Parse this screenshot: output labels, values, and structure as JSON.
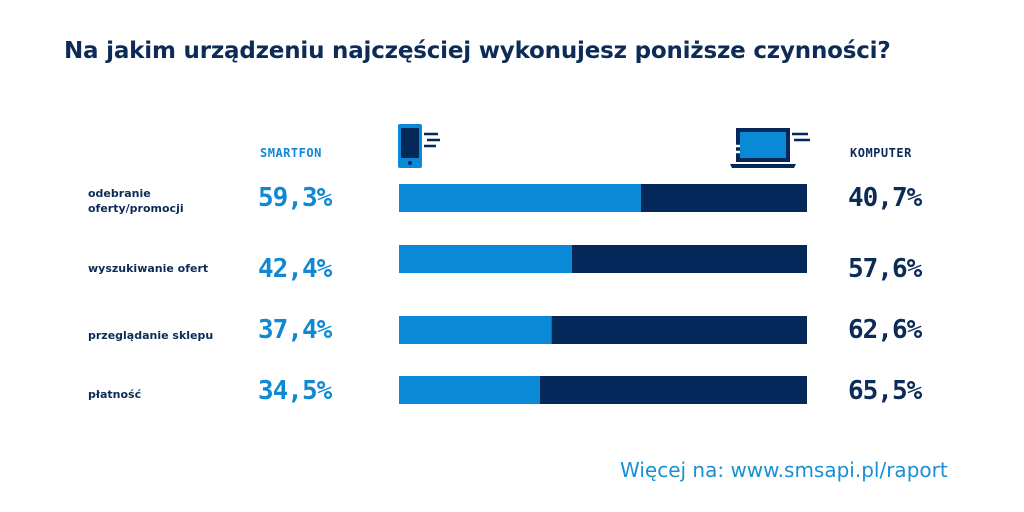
{
  "title": "Na jakim urządzeniu najczęściej wykonujesz poniższe czynności?",
  "legend": {
    "left": "SMARTFON",
    "right": "KOMPUTER",
    "left_icon": "smartphone-icon",
    "right_icon": "laptop-icon"
  },
  "colors": {
    "smartfon": "#0a8ad6",
    "komputer": "#04285a",
    "title": "#0d2b57"
  },
  "footer": "Więcej na: www.smsapi.pl/raport",
  "chart_data": {
    "type": "bar",
    "orientation": "horizontal",
    "stacked": true,
    "normalized_percent": true,
    "title": "Na jakim urządzeniu najczęściej wykonujesz poniższe czynności?",
    "categories": [
      "odebranie oferty/promocji",
      "wyszukiwanie ofert",
      "przeglądanie sklepu",
      "płatność"
    ],
    "series": [
      {
        "name": "SMARTFON",
        "values": [
          59.3,
          42.4,
          37.4,
          34.5
        ],
        "labels": [
          "59,3%",
          "42,4%",
          "37,4%",
          "34,5%"
        ]
      },
      {
        "name": "KOMPUTER",
        "values": [
          40.7,
          57.6,
          62.6,
          65.5
        ],
        "labels": [
          "40,7%",
          "57,6%",
          "62,6%",
          "65,5%"
        ]
      }
    ],
    "xlim": [
      0,
      100
    ],
    "grid": false,
    "legend_position": "top"
  },
  "rows": [
    {
      "label_lines": [
        "odebranie",
        "oferty/promocji"
      ],
      "left": "59,3%",
      "right": "40,7%"
    },
    {
      "label_lines": [
        "wyszukiwanie ofert"
      ],
      "left": "42,4%",
      "right": "57,6%"
    },
    {
      "label_lines": [
        "przeglądanie sklepu"
      ],
      "left": "37,4%",
      "right": "62,6%"
    },
    {
      "label_lines": [
        "płatność"
      ],
      "left": "34,5%",
      "right": "65,5%"
    }
  ]
}
